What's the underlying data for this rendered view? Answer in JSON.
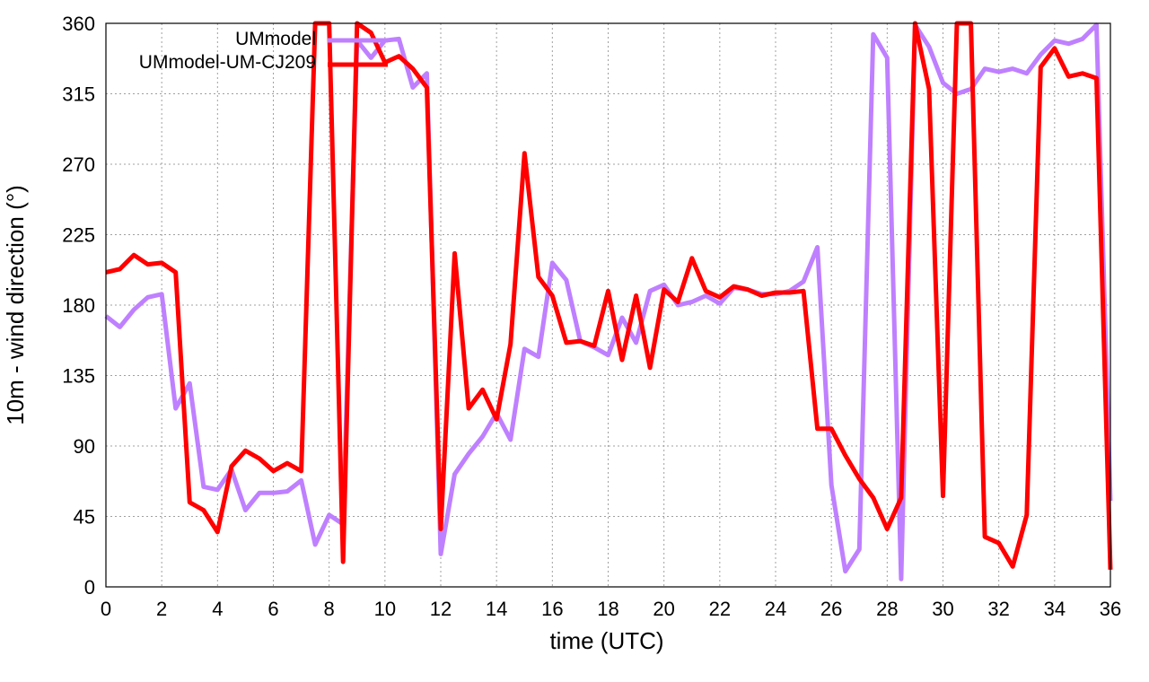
{
  "chart_data": {
    "type": "line",
    "title": "",
    "xlabel": "time (UTC)",
    "ylabel": "10m - wind direction (°)",
    "xlim": [
      0,
      36
    ],
    "ylim": [
      0,
      360
    ],
    "xticks": [
      0,
      2,
      4,
      6,
      8,
      10,
      12,
      14,
      16,
      18,
      20,
      22,
      24,
      26,
      28,
      30,
      32,
      34,
      36
    ],
    "yticks": [
      0,
      45,
      90,
      135,
      180,
      225,
      270,
      315,
      360
    ],
    "grid": true,
    "legend_position": "top-left",
    "series": [
      {
        "name": "UMmodel",
        "color": "#bf80ff",
        "x": [
          0,
          0.5,
          1,
          1.5,
          2,
          2.5,
          3,
          3.5,
          4,
          4.5,
          5,
          5.5,
          6,
          6.5,
          7,
          7.5,
          8,
          8.5,
          9,
          9.5,
          10,
          10.5,
          11,
          11.5,
          12,
          12.5,
          13,
          13.5,
          14,
          14.5,
          15,
          15.5,
          16,
          16.5,
          17,
          17.5,
          18,
          18.5,
          19,
          19.5,
          20,
          20.5,
          21,
          21.5,
          22,
          22.5,
          23,
          23.5,
          24,
          24.5,
          25,
          25.5,
          26,
          26.5,
          27,
          27.5,
          28,
          28.5,
          29,
          29.5,
          30,
          30.5,
          31,
          31.5,
          32,
          32.5,
          33,
          33.5,
          34,
          34.5,
          35,
          35.5,
          36
        ],
        "values": [
          173,
          166,
          177,
          185,
          187,
          114,
          130,
          64,
          62,
          75,
          49,
          60,
          60,
          61,
          68,
          27,
          46,
          40,
          349,
          338,
          349,
          350,
          319,
          328,
          21,
          72,
          85,
          96,
          111,
          94,
          152,
          147,
          207,
          196,
          157,
          153,
          148,
          172,
          156,
          189,
          193,
          180,
          182,
          186,
          181,
          191,
          190,
          187,
          187,
          189,
          195,
          217,
          65,
          10,
          24,
          353,
          338,
          5,
          359,
          345,
          322,
          315,
          318,
          331,
          329,
          331,
          328,
          340,
          349,
          347,
          350,
          359,
          55
        ]
      },
      {
        "name": "UMmodel-UM-CJ209",
        "color": "#ff0000",
        "x": [
          0,
          0.5,
          1,
          1.5,
          2,
          2.5,
          3,
          3.5,
          4,
          4.5,
          5,
          5.5,
          6,
          6.5,
          7,
          7.5,
          8,
          8.5,
          9,
          9.5,
          10,
          10.5,
          11,
          11.5,
          12,
          12.5,
          13,
          13.5,
          14,
          14.5,
          15,
          15.5,
          16,
          16.5,
          17,
          17.5,
          18,
          18.5,
          19,
          19.5,
          20,
          20.5,
          21,
          21.5,
          22,
          22.5,
          23,
          23.5,
          24,
          24.5,
          25,
          25.5,
          26,
          26.5,
          27,
          27.5,
          28,
          28.5,
          29,
          29.5,
          30,
          30.5,
          31,
          31.5,
          32,
          32.5,
          33,
          33.5,
          34,
          34.5,
          35,
          35.5,
          36
        ],
        "values": [
          201,
          203,
          212,
          206,
          207,
          201,
          54,
          49,
          35,
          77,
          87,
          82,
          74,
          79,
          74,
          360,
          360,
          16,
          360,
          354,
          335,
          339,
          331,
          319,
          37,
          213,
          114,
          126,
          107,
          155,
          277,
          198,
          186,
          156,
          157,
          154,
          189,
          145,
          186,
          140,
          190,
          182,
          210,
          189,
          185,
          192,
          190,
          186,
          188,
          188,
          189,
          101,
          101,
          84,
          69,
          57,
          37,
          57,
          360,
          318,
          58,
          360,
          360,
          32,
          28,
          13,
          46,
          332,
          344,
          326,
          328,
          325,
          11
        ]
      }
    ]
  }
}
